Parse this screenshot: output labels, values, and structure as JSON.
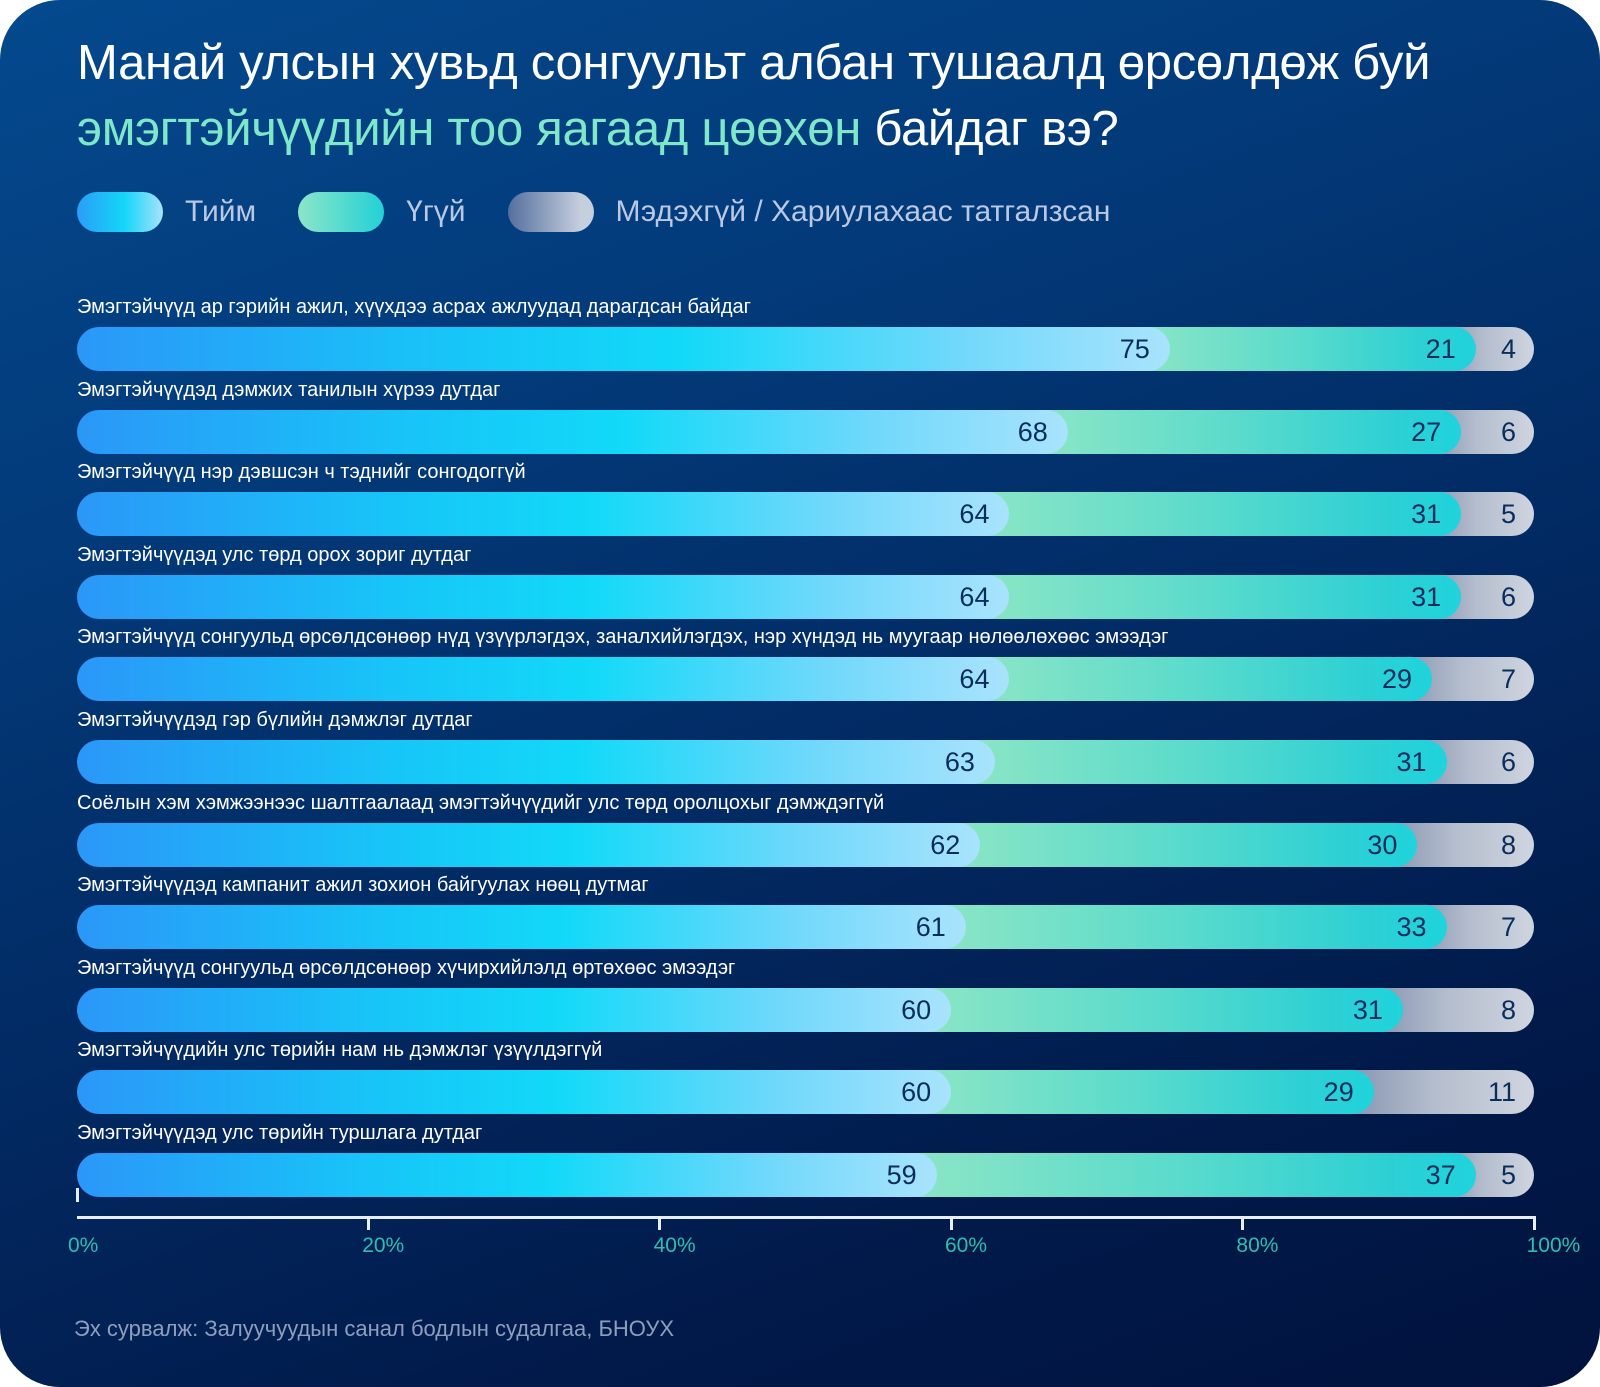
{
  "title": {
    "line1": "Манай улсын хувьд сонгуульт албан тушаалд өрсөлдөж буй",
    "line2_accent": "эмэгтэйчүүдийн тоо яагаад цөөхөн",
    "line2_rest": " байдаг вэ?"
  },
  "colors": {
    "yes": "#13d6f8",
    "no": "#2dd0d4",
    "dont_know": "#b4bdcd",
    "accent_title": "#7ee8c9",
    "tick_label": "#2fbdb3"
  },
  "source": "Эх сурвалж: Залуучуудын санал бодлын судалгаа, БНОУХ",
  "chart_data": {
    "type": "bar",
    "orientation": "horizontal",
    "stacked": true,
    "title": "Манай улсын хувьд сонгуульт албан тушаалд өрсөлдөж буй эмэгтэйчүүдийн тоо яагаад цөөхөн байдаг вэ?",
    "xlabel": "",
    "ylabel": "",
    "xlim": [
      0,
      100
    ],
    "x_ticks": [
      "0%",
      "20%",
      "40%",
      "60%",
      "80%",
      "100%"
    ],
    "x_tick_values": [
      0,
      20,
      40,
      60,
      80,
      100
    ],
    "grid": false,
    "legend_position": "top-left",
    "categories": [
      "Эмэгтэйчүүд ар гэрийн ажил, хүүхдээ асрах ажлуудад дарагдсан байдаг",
      "Эмэгтэйчүүдэд дэмжих танилын хүрээ дутдаг",
      "Эмэгтэйчүүд нэр дэвшсэн ч тэднийг сонгодоггүй",
      "Эмэгтэйчүүдэд улс төрд орох зориг дутдаг",
      "Эмэгтэйчүүд сонгуульд өрсөлдсөнөөр нүд үзүүрлэгдэх, заналхийлэгдэх, нэр хүндэд нь муугаар нөлөөлөхөөс эмээдэг",
      "Эмэгтэйчүүдэд гэр бүлийн дэмжлэг дутдаг",
      "Соёлын хэм хэмжээнээс шалтгаалаад эмэгтэйчүүдийг улс төрд оролцохыг дэмждэггүй",
      "Эмэгтэйчүүдэд кампанит ажил зохион байгуулах нөөц дутмаг",
      "Эмэгтэйчүүд сонгуульд өрсөлдсөнөөр хүчирхийлэлд өртөхөөс эмээдэг",
      "Эмэгтэйчүүдийн улс төрийн нам нь дэмжлэг үзүүлдэггүй",
      "Эмэгтэйчүүдэд улс төрийн туршлага дутдаг"
    ],
    "series": [
      {
        "name": "Тийм",
        "key": "yes",
        "values": [
          75,
          68,
          64,
          64,
          64,
          63,
          62,
          61,
          60,
          60,
          59
        ]
      },
      {
        "name": "Үгүй",
        "key": "no",
        "values": [
          21,
          27,
          31,
          31,
          29,
          31,
          30,
          33,
          31,
          29,
          37
        ]
      },
      {
        "name": "Мэдэхгүй / Хариулахаас татгалзсан",
        "key": "dont_know",
        "values": [
          4,
          6,
          5,
          6,
          7,
          6,
          8,
          7,
          8,
          11,
          5
        ]
      }
    ]
  }
}
